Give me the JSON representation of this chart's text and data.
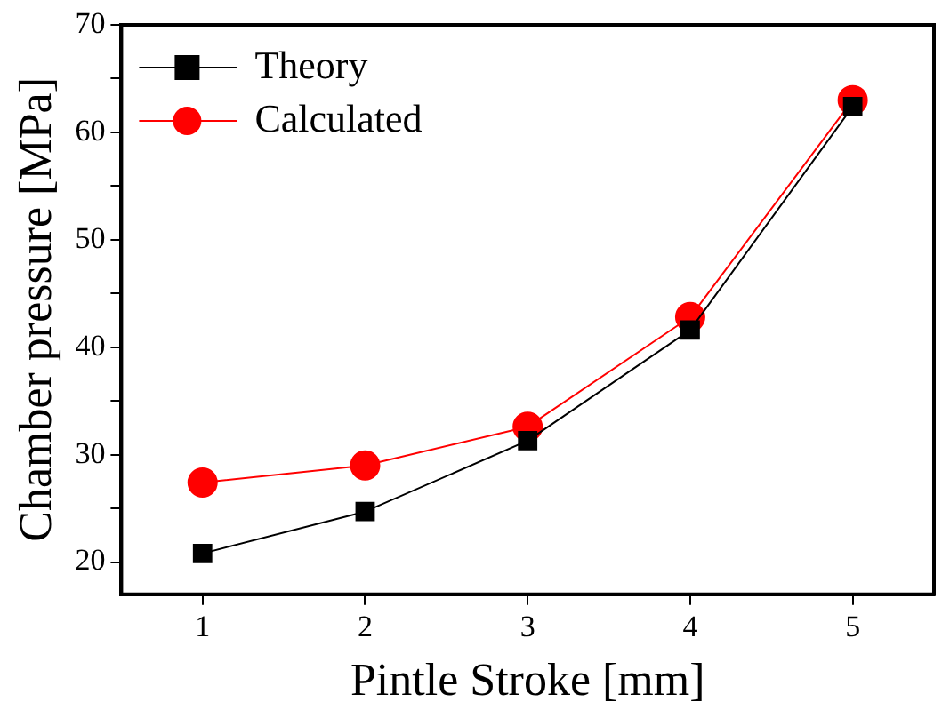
{
  "chart_data": {
    "type": "line",
    "xlabel": "Pintle Stroke [mm]",
    "ylabel": "Chamber pressure [MPa]",
    "x": [
      1,
      2,
      3,
      4,
      5
    ],
    "series": [
      {
        "name": "Theory",
        "color": "#000000",
        "marker": "square",
        "values": [
          20.8,
          24.7,
          31.3,
          41.6,
          62.4
        ]
      },
      {
        "name": "Calculated",
        "color": "#ff0000",
        "marker": "circle",
        "values": [
          27.4,
          29.0,
          32.6,
          42.8,
          63.0
        ]
      }
    ],
    "xlim": [
      0.5,
      5.5
    ],
    "xticks": [
      1,
      2,
      3,
      4,
      5
    ],
    "ylim": [
      17,
      70
    ],
    "yticks": [
      20,
      {
        "value": 25,
        "label": null
      },
      30,
      {
        "value": 35,
        "label": null
      },
      40,
      {
        "value": 45,
        "label": null
      },
      50,
      {
        "value": 55,
        "label": null
      },
      60,
      {
        "value": 65,
        "label": null
      },
      70
    ],
    "grid": false,
    "legend": "top left",
    "line_style": "solid"
  }
}
